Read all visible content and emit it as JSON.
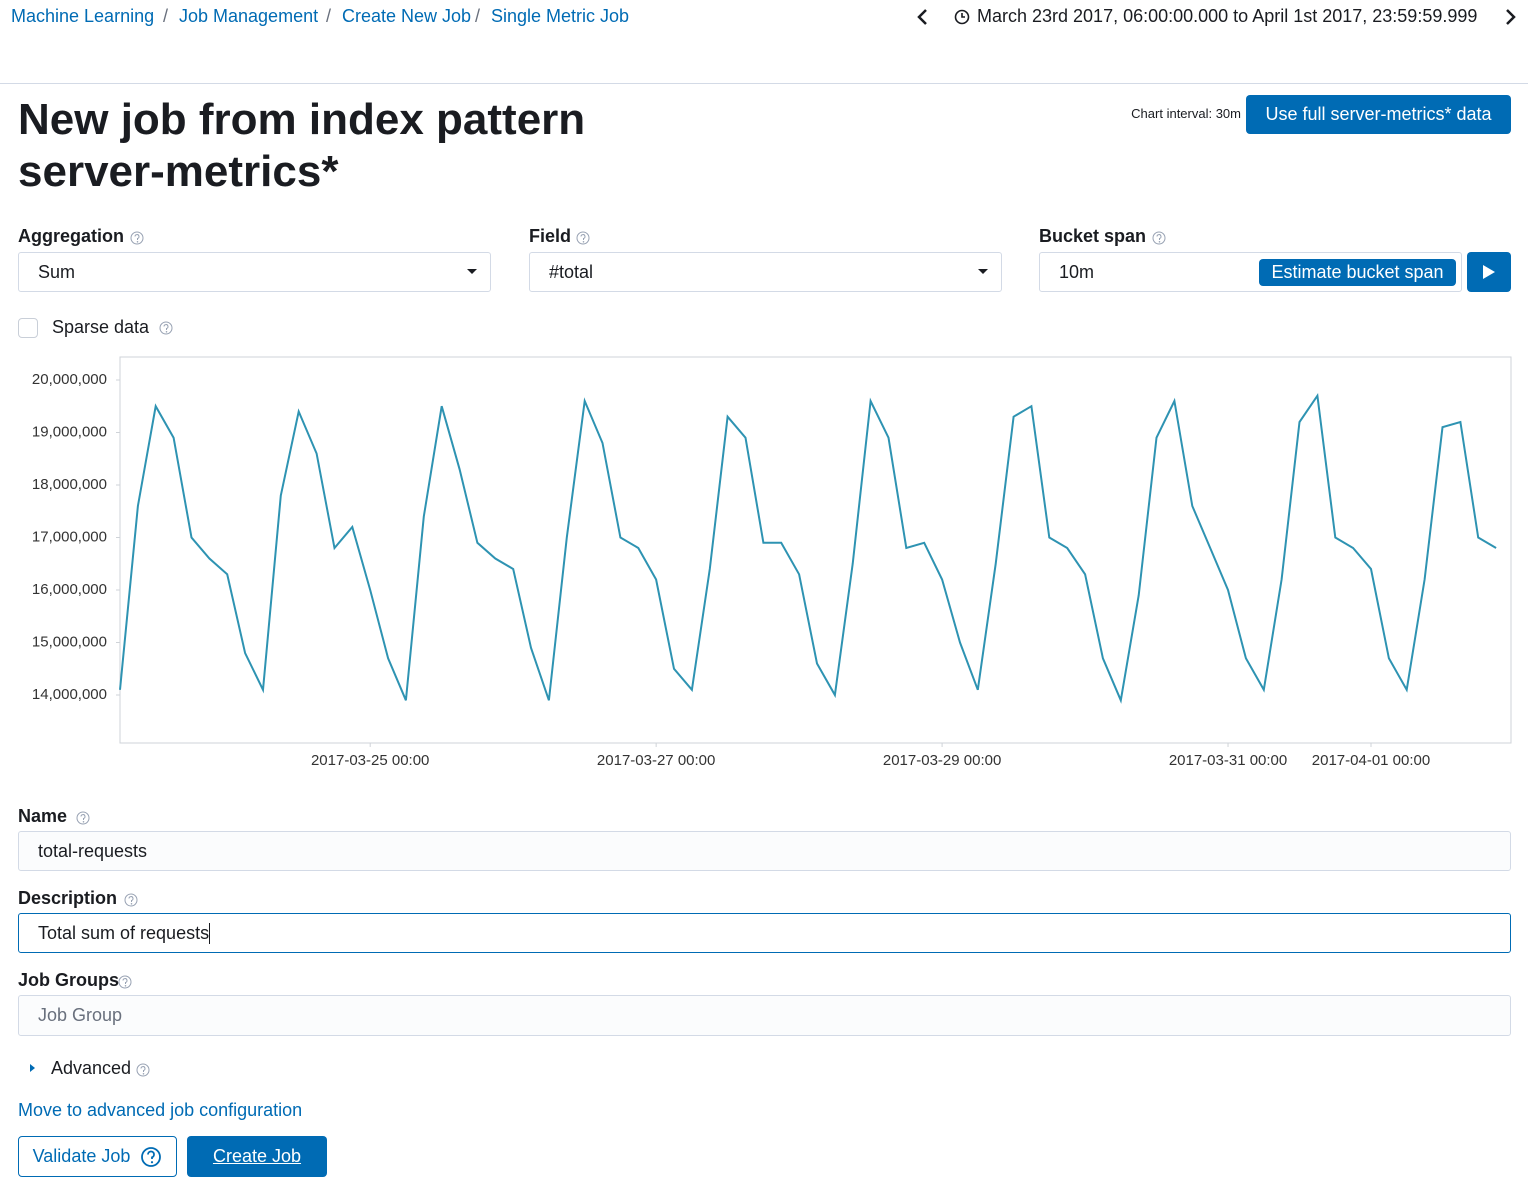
{
  "breadcrumbs": [
    "Machine Learning",
    "Job Management",
    "Create New Job",
    "Single Metric Job"
  ],
  "time_range": "March 23rd 2017, 06:00:00.000 to April 1st 2017, 23:59:59.999",
  "header": {
    "title": "New job from index pattern server-metrics*",
    "chart_interval": "Chart interval: 30m",
    "full_data_button": "Use full server-metrics* data"
  },
  "aggregation": {
    "label": "Aggregation",
    "value": "Sum"
  },
  "field": {
    "label": "Field",
    "value": "#total"
  },
  "bucket_span": {
    "label": "Bucket span",
    "value": "10m",
    "estimate_button": "Estimate bucket span"
  },
  "sparse_data": "Sparse data",
  "chart_data": {
    "type": "line",
    "x": [
      "2017-03-23 06:00",
      "2017-03-23 09:00",
      "2017-03-23 12:00",
      "2017-03-23 15:00",
      "2017-03-23 18:00",
      "2017-03-23 21:00",
      "2017-03-24 00:00",
      "2017-03-24 03:00",
      "2017-03-24 06:00",
      "2017-03-24 09:00",
      "2017-03-24 12:00",
      "2017-03-24 15:00",
      "2017-03-24 18:00",
      "2017-03-24 21:00",
      "2017-03-25 00:00",
      "2017-03-25 03:00",
      "2017-03-25 06:00",
      "2017-03-25 09:00",
      "2017-03-25 12:00",
      "2017-03-25 15:00",
      "2017-03-25 18:00",
      "2017-03-25 21:00",
      "2017-03-26 00:00",
      "2017-03-26 03:00",
      "2017-03-26 06:00",
      "2017-03-26 09:00",
      "2017-03-26 12:00",
      "2017-03-26 15:00",
      "2017-03-26 18:00",
      "2017-03-26 21:00",
      "2017-03-27 00:00",
      "2017-03-27 03:00",
      "2017-03-27 06:00",
      "2017-03-27 09:00",
      "2017-03-27 12:00",
      "2017-03-27 15:00",
      "2017-03-27 18:00",
      "2017-03-27 21:00",
      "2017-03-28 00:00",
      "2017-03-28 03:00",
      "2017-03-28 06:00",
      "2017-03-28 09:00",
      "2017-03-28 12:00",
      "2017-03-28 15:00",
      "2017-03-28 18:00",
      "2017-03-28 21:00",
      "2017-03-29 00:00",
      "2017-03-29 03:00",
      "2017-03-29 06:00",
      "2017-03-29 09:00",
      "2017-03-29 12:00",
      "2017-03-29 15:00",
      "2017-03-29 18:00",
      "2017-03-29 21:00",
      "2017-03-30 00:00",
      "2017-03-30 03:00",
      "2017-03-30 06:00",
      "2017-03-30 09:00",
      "2017-03-30 12:00",
      "2017-03-30 15:00",
      "2017-03-30 18:00",
      "2017-03-30 21:00",
      "2017-03-31 00:00",
      "2017-03-31 03:00",
      "2017-03-31 06:00",
      "2017-03-31 09:00",
      "2017-03-31 12:00",
      "2017-03-31 15:00",
      "2017-03-31 18:00",
      "2017-03-31 21:00",
      "2017-04-01 00:00",
      "2017-04-01 03:00",
      "2017-04-01 06:00",
      "2017-04-01 09:00",
      "2017-04-01 12:00",
      "2017-04-01 15:00",
      "2017-04-01 18:00",
      "2017-04-01 21:00"
    ],
    "values": [
      14100000,
      17600000,
      19500000,
      18900000,
      17000000,
      16600000,
      16300000,
      14800000,
      14100000,
      17800000,
      19400000,
      18600000,
      16800000,
      17200000,
      16000000,
      14700000,
      13900000,
      17400000,
      19500000,
      18300000,
      16900000,
      16600000,
      16400000,
      14900000,
      13900000,
      17000000,
      19600000,
      18800000,
      17000000,
      16800000,
      16200000,
      14500000,
      14100000,
      16400000,
      19300000,
      18900000,
      16900000,
      16900000,
      16300000,
      14600000,
      14000000,
      16500000,
      19600000,
      18900000,
      16800000,
      16900000,
      16200000,
      15000000,
      14100000,
      16500000,
      19300000,
      19500000,
      17000000,
      16800000,
      16300000,
      14700000,
      13900000,
      15900000,
      18900000,
      19600000,
      17600000,
      16800000,
      16000000,
      14700000,
      14100000,
      16200000,
      19200000,
      19700000,
      17000000,
      16800000,
      16400000,
      14700000,
      14100000,
      16200000,
      19100000,
      19200000,
      17000000,
      16800000
    ],
    "color": "#2e93b2",
    "xlim": [
      "2017-03-23 06:00",
      "2017-04-01 23:30"
    ],
    "xticks": [
      "2017-03-25 00:00",
      "2017-03-27 00:00",
      "2017-03-29 00:00",
      "2017-03-31 00:00",
      "2017-04-01 00:00"
    ],
    "ylim": [
      13086000,
      20438000
    ],
    "yticks": [
      {
        "value": 14000000,
        "label": "14,000,000"
      },
      {
        "value": 15000000,
        "label": "15,000,000"
      },
      {
        "value": 16000000,
        "label": "16,000,000"
      },
      {
        "value": 17000000,
        "label": "17,000,000"
      },
      {
        "value": 18000000,
        "label": "18,000,000"
      },
      {
        "value": 19000000,
        "label": "19,000,000"
      },
      {
        "value": 20000000,
        "label": "20,000,000"
      }
    ]
  },
  "name": {
    "label": "Name",
    "value": "total-requests"
  },
  "description": {
    "label": "Description",
    "value": "Total sum of requests"
  },
  "job_groups": {
    "label": "Job Groups",
    "placeholder": "Job Group"
  },
  "advanced": "Advanced",
  "advanced_link": "Move to advanced job configuration",
  "buttons": {
    "validate": "Validate Job",
    "create": "Create Job"
  }
}
